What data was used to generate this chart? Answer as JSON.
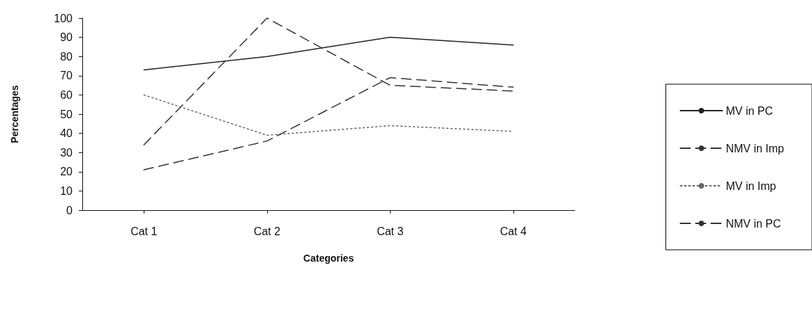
{
  "chart_data": {
    "type": "line",
    "xlabel": "Categories",
    "ylabel": "Percentages",
    "categories": [
      "Cat 1",
      "Cat 2",
      "Cat 3",
      "Cat 4"
    ],
    "series": [
      {
        "name": "MV in PC",
        "color": "#222222",
        "line_style": "solid",
        "values": [
          73,
          80,
          90,
          86
        ]
      },
      {
        "name": "NMV in Imp",
        "color": "#333333",
        "line_style": "dashed",
        "values": [
          34,
          100,
          65,
          62
        ]
      },
      {
        "name": "MV in Imp",
        "color": "#666666",
        "line_style": "dotted",
        "values": [
          60,
          39,
          44,
          41
        ]
      },
      {
        "name": "NMV in PC",
        "color": "#333333",
        "line_style": "dashed",
        "values": [
          21,
          36,
          69,
          64
        ]
      }
    ],
    "ylim": [
      0,
      100
    ],
    "yticks": [
      0,
      10,
      20,
      30,
      40,
      50,
      60,
      70,
      80,
      90,
      100
    ],
    "grid": false,
    "legend": "right",
    "marker": "none"
  }
}
